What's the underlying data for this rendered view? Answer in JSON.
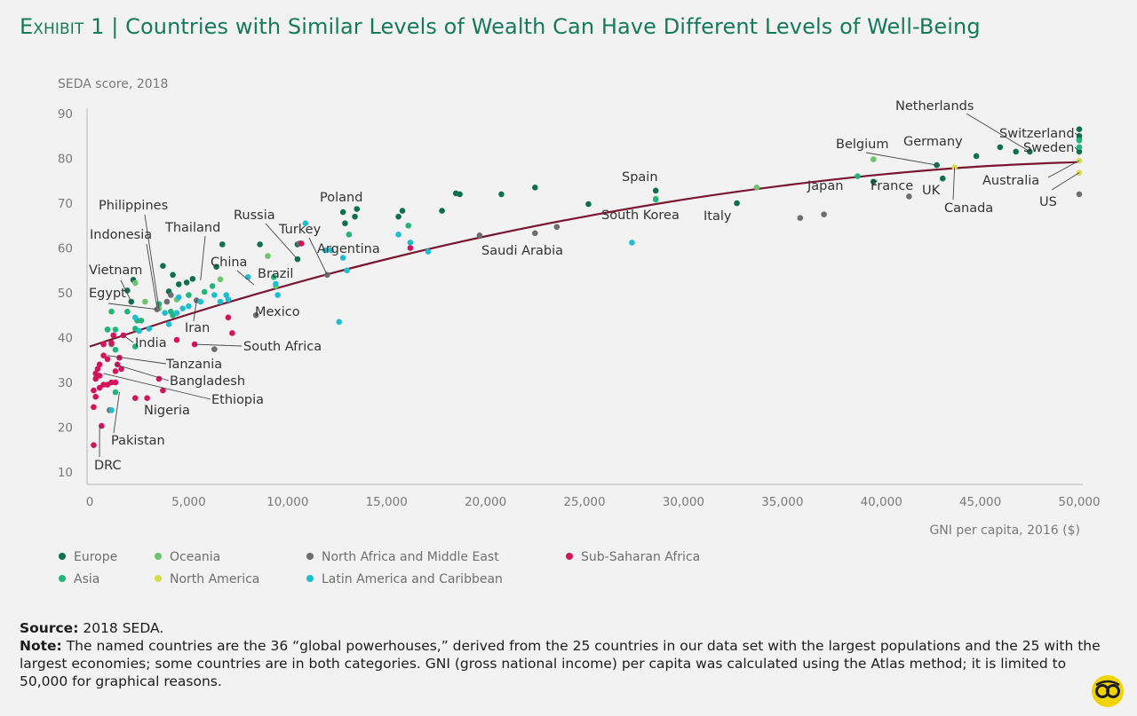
{
  "title": {
    "exhibit": "Exhibit 1",
    "separator": "|",
    "text": "Countries with Similar Levels of Wealth Can Have Different Levels of Well-Being"
  },
  "colors": {
    "Europe": "#0f7050",
    "Oceania": "#6cc46c",
    "North Africa and Middle East": "#6e6e6e",
    "Sub-Saharan Africa": "#d2145a",
    "Asia": "#22b57a",
    "North America": "#d6de4a",
    "Latin America and Caribbean": "#1dbed0",
    "trend": "#7a1630",
    "title": "#157a5a"
  },
  "legend": [
    {
      "label": "Europe",
      "color": "#0f7050"
    },
    {
      "label": "Oceania",
      "color": "#6cc46c"
    },
    {
      "label": "North Africa and Middle East",
      "color": "#6e6e6e"
    },
    {
      "label": "Sub-Saharan Africa",
      "color": "#d2145a"
    },
    {
      "label": "Asia",
      "color": "#22b57a"
    },
    {
      "label": "North America",
      "color": "#d6de4a"
    },
    {
      "label": "Latin America and Caribbean",
      "color": "#1dbed0"
    }
  ],
  "chart_data": {
    "type": "scatter",
    "title": "Countries with Similar Levels of Wealth Can Have Different Levels of Well-Being",
    "xlabel": "GNI per capita, 2016 ($)",
    "ylabel": "SEDA score, 2018",
    "xlim": [
      0,
      50000
    ],
    "ylim": [
      10,
      90
    ],
    "x_ticks": [
      "0",
      "5,000",
      "10,000",
      "15,000",
      "20,000",
      "25,000",
      "30,000",
      "35,000",
      "40,000",
      "45,000",
      "50,000"
    ],
    "y_ticks": [
      "10",
      "20",
      "30",
      "40",
      "50",
      "60",
      "70",
      "80",
      "90"
    ],
    "grid": false,
    "legend_position": "bottom",
    "trend_line": {
      "series": "fitted curve",
      "points": [
        [
          0,
          38
        ],
        [
          5000,
          45.2
        ],
        [
          10000,
          51.7
        ],
        [
          15000,
          57.5
        ],
        [
          20000,
          62.6
        ],
        [
          25000,
          67.0
        ],
        [
          30000,
          70.8
        ],
        [
          35000,
          73.9
        ],
        [
          40000,
          76.4
        ],
        [
          45000,
          78.2
        ],
        [
          50000,
          79.2
        ]
      ]
    },
    "labels": [
      {
        "name": "Netherlands",
        "x": 47500,
        "y": 81.5
      },
      {
        "name": "Switzerland",
        "x": 50000,
        "y": 85
      },
      {
        "name": "Sweden",
        "x": 50000,
        "y": 81.5
      },
      {
        "name": "Belgium",
        "x": 42800,
        "y": 78.5
      },
      {
        "name": "Germany",
        "x": 44800,
        "y": 80.5
      },
      {
        "name": "Japan",
        "x": 38800,
        "y": 76
      },
      {
        "name": "France",
        "x": 39600,
        "y": 74.8
      },
      {
        "name": "UK",
        "x": 43100,
        "y": 75.5
      },
      {
        "name": "Australia",
        "x": 50000,
        "y": 79.5
      },
      {
        "name": "Canada",
        "x": 43700,
        "y": 78
      },
      {
        "name": "US",
        "x": 50000,
        "y": 76.8
      },
      {
        "name": "Spain",
        "x": 28600,
        "y": 72.8
      },
      {
        "name": "South Korea",
        "x": 28600,
        "y": 70.8
      },
      {
        "name": "Italy",
        "x": 32700,
        "y": 70
      },
      {
        "name": "Saudi Arabia",
        "x": 22500,
        "y": 63.3
      },
      {
        "name": "Poland",
        "x": 12800,
        "y": 68
      },
      {
        "name": "Russia",
        "x": 10500,
        "y": 57.5
      },
      {
        "name": "Turkey",
        "x": 12000,
        "y": 54
      },
      {
        "name": "Argentina",
        "x": 11900,
        "y": 59.5
      },
      {
        "name": "Thailand",
        "x": 5600,
        "y": 52.8
      },
      {
        "name": "Philippines",
        "x": 3500,
        "y": 46.5
      },
      {
        "name": "Indonesia",
        "x": 3400,
        "y": 46.8
      },
      {
        "name": "Vietnam",
        "x": 2100,
        "y": 48
      },
      {
        "name": "Egypt",
        "x": 3400,
        "y": 46.3
      },
      {
        "name": "China",
        "x": 8300,
        "y": 51.8
      },
      {
        "name": "Brazil",
        "x": 8800,
        "y": 52
      },
      {
        "name": "Mexico",
        "x": 8400,
        "y": 45
      },
      {
        "name": "Iran",
        "x": 5400,
        "y": 48.3
      },
      {
        "name": "India",
        "x": 1700,
        "y": 40.5
      },
      {
        "name": "South Africa",
        "x": 5300,
        "y": 38.5
      },
      {
        "name": "Tanzania",
        "x": 900,
        "y": 36
      },
      {
        "name": "Bangladesh",
        "x": 1300,
        "y": 34
      },
      {
        "name": "Ethiopia",
        "x": 700,
        "y": 32
      },
      {
        "name": "Nigeria",
        "x": 2500,
        "y": 31
      },
      {
        "name": "Pakistan",
        "x": 1500,
        "y": 27.8
      },
      {
        "name": "DRC",
        "x": 500,
        "y": 20.3
      }
    ],
    "series": [
      {
        "name": "Europe",
        "points": [
          [
            50000,
            86.5
          ],
          [
            50000,
            85
          ],
          [
            50000,
            84.2
          ],
          [
            47500,
            81.5
          ],
          [
            46800,
            81.5
          ],
          [
            46000,
            82.5
          ],
          [
            44800,
            80.5
          ],
          [
            42800,
            78.5
          ],
          [
            50000,
            81.5
          ],
          [
            43100,
            75.5
          ],
          [
            39600,
            74.8
          ],
          [
            32700,
            70
          ],
          [
            28600,
            72.8
          ],
          [
            25200,
            69.8
          ],
          [
            22500,
            73.5
          ],
          [
            20800,
            72
          ],
          [
            18700,
            72
          ],
          [
            18500,
            72.2
          ],
          [
            17800,
            68.3
          ],
          [
            15800,
            68.3
          ],
          [
            15600,
            67
          ],
          [
            13500,
            68.7
          ],
          [
            13400,
            67
          ],
          [
            12900,
            65.5
          ],
          [
            12800,
            68
          ],
          [
            10500,
            57.5
          ],
          [
            10500,
            60.8
          ],
          [
            8600,
            60.8
          ],
          [
            6700,
            60.8
          ],
          [
            5200,
            53.1
          ],
          [
            4900,
            52.3
          ],
          [
            4500,
            51.9
          ],
          [
            4200,
            54
          ],
          [
            3700,
            56
          ],
          [
            2200,
            52.9
          ],
          [
            1900,
            50.5
          ],
          [
            2100,
            48
          ],
          [
            6400,
            55.8
          ],
          [
            4000,
            50.3
          ]
        ]
      },
      {
        "name": "Oceania",
        "points": [
          [
            39600,
            79.8
          ],
          [
            33700,
            73.5
          ],
          [
            28600,
            71
          ],
          [
            9000,
            58.2
          ],
          [
            9400,
            51.5
          ],
          [
            6600,
            53
          ],
          [
            4400,
            48.5
          ],
          [
            2800,
            48
          ],
          [
            2300,
            52.2
          ],
          [
            3500,
            46.5
          ]
        ]
      },
      {
        "name": "North Africa and Middle East",
        "points": [
          [
            50000,
            72
          ],
          [
            41400,
            71.5
          ],
          [
            37100,
            67.5
          ],
          [
            35900,
            66.7
          ],
          [
            23600,
            64.7
          ],
          [
            22500,
            63.3
          ],
          [
            19700,
            62.8
          ],
          [
            12000,
            54
          ],
          [
            10600,
            61
          ],
          [
            8400,
            45
          ],
          [
            6300,
            37.4
          ],
          [
            5400,
            48.3
          ],
          [
            4100,
            49.5
          ],
          [
            3400,
            46.3
          ],
          [
            1000,
            23.8
          ],
          [
            900,
            41.8
          ],
          [
            1100,
            38.5
          ],
          [
            3900,
            48
          ]
        ]
      },
      {
        "name": "Sub-Saharan Africa",
        "points": [
          [
            10700,
            61
          ],
          [
            16200,
            60
          ],
          [
            7200,
            41
          ],
          [
            7000,
            44.5
          ],
          [
            5300,
            38.5
          ],
          [
            4400,
            39.5
          ],
          [
            3500,
            30.8
          ],
          [
            3700,
            28.2
          ],
          [
            2900,
            26.5
          ],
          [
            2300,
            26.5
          ],
          [
            1600,
            33
          ],
          [
            1500,
            35.5
          ],
          [
            1300,
            32.5
          ],
          [
            1400,
            34
          ],
          [
            1300,
            30
          ],
          [
            1100,
            30
          ],
          [
            900,
            29.5
          ],
          [
            700,
            29.5
          ],
          [
            500,
            31.5
          ],
          [
            500,
            34
          ],
          [
            400,
            33
          ],
          [
            300,
            30.8
          ],
          [
            200,
            28.2
          ],
          [
            300,
            26.8
          ],
          [
            200,
            24.5
          ],
          [
            500,
            28.8
          ],
          [
            600,
            20.3
          ],
          [
            200,
            16
          ],
          [
            700,
            36
          ],
          [
            700,
            38.5
          ],
          [
            1100,
            38.8
          ],
          [
            1200,
            40.5
          ],
          [
            1700,
            40.5
          ],
          [
            900,
            35.2
          ],
          [
            300,
            32
          ]
        ]
      },
      {
        "name": "Asia",
        "points": [
          [
            50000,
            84
          ],
          [
            50000,
            82.5
          ],
          [
            38800,
            76
          ],
          [
            28600,
            70.8
          ],
          [
            16100,
            65
          ],
          [
            13100,
            63
          ],
          [
            9300,
            53.5
          ],
          [
            6200,
            51.5
          ],
          [
            5800,
            50.2
          ],
          [
            5000,
            49.5
          ],
          [
            3500,
            47.5
          ],
          [
            4100,
            45.8
          ],
          [
            4200,
            45
          ],
          [
            2400,
            43.8
          ],
          [
            2600,
            43.8
          ],
          [
            1900,
            45.8
          ],
          [
            1100,
            45.8
          ],
          [
            900,
            41.8
          ],
          [
            1300,
            41.8
          ],
          [
            2300,
            38
          ],
          [
            1300,
            37.3
          ],
          [
            2300,
            42
          ],
          [
            1300,
            27.8
          ]
        ]
      },
      {
        "name": "North America",
        "points": [
          [
            50000,
            79.5
          ],
          [
            50000,
            76.8
          ],
          [
            43700,
            78
          ]
        ]
      },
      {
        "name": "Latin America and Caribbean",
        "points": [
          [
            27400,
            61.2
          ],
          [
            16200,
            61.2
          ],
          [
            15600,
            63
          ],
          [
            17100,
            59.2
          ],
          [
            12800,
            57.8
          ],
          [
            12200,
            59.5
          ],
          [
            13000,
            55
          ],
          [
            11900,
            59.5
          ],
          [
            10900,
            65.5
          ],
          [
            9400,
            52
          ],
          [
            9500,
            49.5
          ],
          [
            8000,
            53.5
          ],
          [
            6300,
            49.5
          ],
          [
            6600,
            48
          ],
          [
            6900,
            49.5
          ],
          [
            7000,
            48.5
          ],
          [
            5600,
            48
          ],
          [
            5000,
            47
          ],
          [
            4500,
            49
          ],
          [
            4700,
            46.5
          ],
          [
            4400,
            45.5
          ],
          [
            3800,
            45.5
          ],
          [
            3000,
            42
          ],
          [
            4000,
            43
          ],
          [
            2500,
            41.5
          ],
          [
            2300,
            44.5
          ],
          [
            12600,
            43.5
          ],
          [
            1100,
            23.8
          ]
        ]
      }
    ]
  },
  "source": {
    "label": "Source:",
    "text": "2018 SEDA."
  },
  "note": {
    "label": "Note:",
    "text": "The named countries are the 36 “global powerhouses,” derived from the 25 countries in our data set with the largest populations and the 25 with the largest economies; some countries are in both categories. GNI (gross national income) per capita was calculated using the Atlas method; it is limited to 50,000 for graphical reasons."
  }
}
